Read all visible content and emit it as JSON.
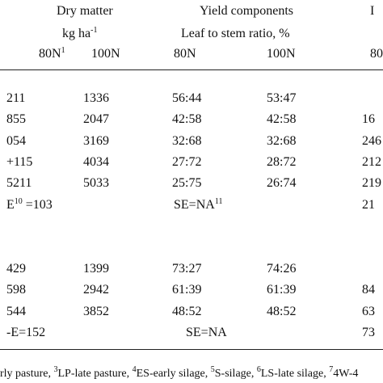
{
  "header": {
    "groups": [
      "Dry matter",
      "Yield components",
      "I"
    ],
    "units": [
      {
        "text": "kg ha",
        "sup": "-1"
      },
      "Leaf to stem ratio, %"
    ],
    "columns": [
      {
        "text": "80N",
        "sup": "1"
      },
      "100N",
      "80N",
      "100N",
      "80"
    ]
  },
  "table": {
    "rows": [
      [
        "211",
        "1336",
        "56:44",
        "53:47",
        null
      ],
      [
        "855",
        "2047",
        "42:58",
        "42:58",
        "16"
      ],
      [
        "054",
        "3169",
        "32:68",
        "32:68",
        "246"
      ],
      [
        "+115",
        "4034",
        "27:72",
        "28:72",
        "212"
      ],
      [
        "5211",
        "5033",
        "25:75",
        "26:74",
        "219"
      ],
      [
        {
          "text": "E",
          "sup": "10",
          "after": " =103"
        },
        null,
        {
          "text": "SE=NA",
          "sup": "11"
        },
        null,
        "21"
      ],
      [
        null,
        null,
        null,
        null,
        null
      ],
      [
        "429",
        "1399",
        "73:27",
        "74:26",
        null
      ],
      [
        "598",
        "2942",
        "61:39",
        "61:39",
        "84"
      ],
      [
        "544",
        "3852",
        "48:52",
        "48:52",
        "63"
      ],
      [
        "-E=152",
        null,
        "SE=NA",
        null,
        "73"
      ]
    ]
  },
  "footnote": {
    "lead": "rly pasture, ",
    "items": [
      {
        "sup": "3",
        "text": "LP-late pasture, "
      },
      {
        "sup": "4",
        "text": "ES-early silage, "
      },
      {
        "sup": "5",
        "text": "S-silage, "
      },
      {
        "sup": "6",
        "text": "LS-late silage, "
      },
      {
        "sup": "7",
        "text": "4W-4"
      }
    ]
  }
}
